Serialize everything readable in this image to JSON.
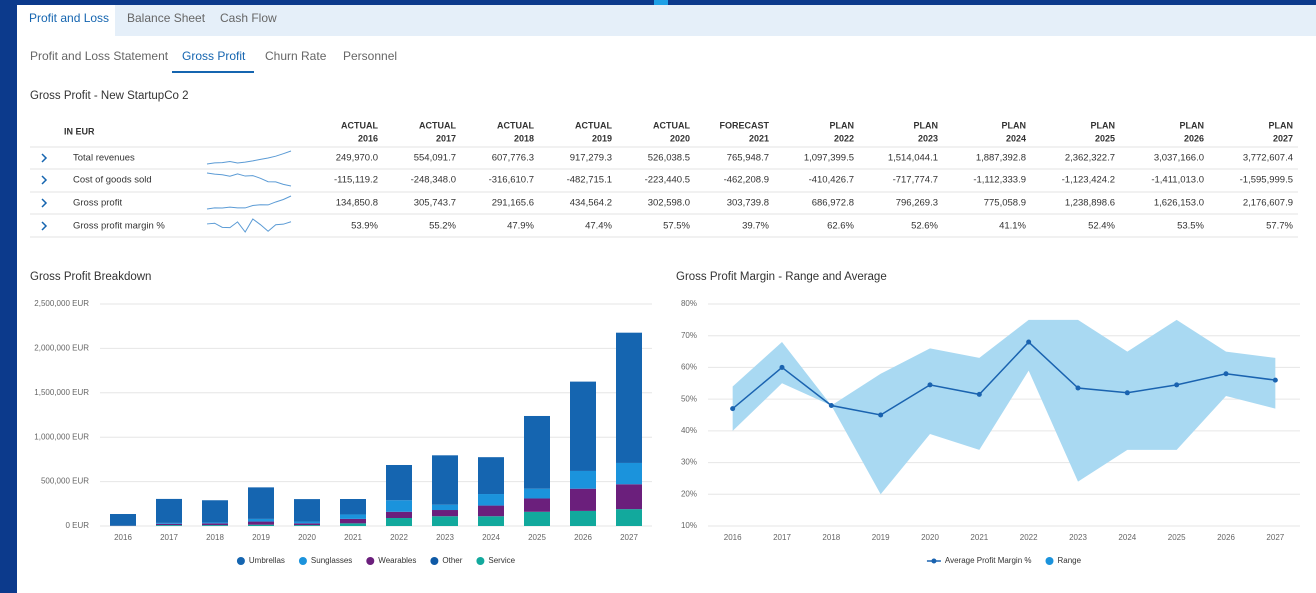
{
  "tabs": [
    "Profit and Loss",
    "Balance Sheet",
    "Cash Flow"
  ],
  "subtabs": [
    "Profit and Loss Statement",
    "Gross Profit",
    "Churn Rate",
    "Personnel"
  ],
  "table": {
    "title": "Gross Profit - New StartupCo 2",
    "unit": "IN EUR",
    "columns": [
      {
        "kind": "ACTUAL",
        "year": "2016"
      },
      {
        "kind": "ACTUAL",
        "year": "2017"
      },
      {
        "kind": "ACTUAL",
        "year": "2018"
      },
      {
        "kind": "ACTUAL",
        "year": "2019"
      },
      {
        "kind": "ACTUAL",
        "year": "2020"
      },
      {
        "kind": "FORECAST",
        "year": "2021"
      },
      {
        "kind": "PLAN",
        "year": "2022"
      },
      {
        "kind": "PLAN",
        "year": "2023"
      },
      {
        "kind": "PLAN",
        "year": "2024"
      },
      {
        "kind": "PLAN",
        "year": "2025"
      },
      {
        "kind": "PLAN",
        "year": "2026"
      },
      {
        "kind": "PLAN",
        "year": "2027"
      }
    ],
    "rows": [
      {
        "label": "Total revenues",
        "cells": [
          "249,970.0",
          "554,091.7",
          "607,776.3",
          "917,279.3",
          "526,038.5",
          "765,948.7",
          "1,097,399.5",
          "1,514,044.1",
          "1,887,392.8",
          "2,362,322.7",
          "3,037,166.0",
          "3,772,607.4"
        ]
      },
      {
        "label": "Cost of goods sold",
        "cells": [
          "-115,119.2",
          "-248,348.0",
          "-316,610.7",
          "-482,715.1",
          "-223,440.5",
          "-462,208.9",
          "-410,426.7",
          "-717,774.7",
          "-1,112,333.9",
          "-1,123,424.2",
          "-1,411,013.0",
          "-1,595,999.5"
        ]
      },
      {
        "label": "Gross profit",
        "cells": [
          "134,850.8",
          "305,743.7",
          "291,165.6",
          "434,564.2",
          "302,598.0",
          "303,739.8",
          "686,972.8",
          "796,269.3",
          "775,058.9",
          "1,238,898.6",
          "1,626,153.0",
          "2,176,607.9"
        ]
      },
      {
        "label": "Gross profit margin %",
        "cells": [
          "53.9%",
          "55.2%",
          "47.9%",
          "47.4%",
          "57.5%",
          "39.7%",
          "62.6%",
          "52.6%",
          "41.1%",
          "52.4%",
          "53.5%",
          "57.7%"
        ]
      }
    ]
  },
  "chart_data": [
    {
      "type": "bar",
      "stacked": true,
      "title": "Gross Profit Breakdown",
      "categories": [
        "2016",
        "2017",
        "2018",
        "2019",
        "2020",
        "2021",
        "2022",
        "2023",
        "2024",
        "2025",
        "2026",
        "2027"
      ],
      "series": [
        {
          "name": "Umbrellas",
          "color": "#1565b0",
          "values": [
            130000,
            270000,
            250000,
            355000,
            253000,
            174000,
            397000,
            556000,
            415000,
            819000,
            1006000,
            1467000
          ]
        },
        {
          "name": "Sunglasses",
          "color": "#1b93dc",
          "values": [
            1000,
            10000,
            10000,
            30000,
            20000,
            50000,
            130000,
            60000,
            130000,
            110000,
            200000,
            240000
          ]
        },
        {
          "name": "Wearables",
          "color": "#6b1f7c",
          "values": [
            2000,
            15000,
            20000,
            35000,
            20000,
            50000,
            70000,
            70000,
            120000,
            150000,
            250000,
            280000
          ]
        },
        {
          "name": "Other",
          "color": "#0f5aa6",
          "values": [
            0,
            0,
            0,
            0,
            0,
            0,
            0,
            0,
            0,
            0,
            0,
            0
          ]
        },
        {
          "name": "Service",
          "color": "#12a99d",
          "values": [
            2000,
            10000,
            10000,
            15000,
            10000,
            30000,
            90000,
            110000,
            110000,
            160000,
            170000,
            190000
          ]
        }
      ],
      "ylim": [
        0,
        2500000
      ],
      "yticks": [
        {
          "value": 0,
          "label": "0 EUR"
        },
        {
          "value": 500000,
          "label": "500,000 EUR"
        },
        {
          "value": 1000000,
          "label": "1,000,000 EUR"
        },
        {
          "value": 1500000,
          "label": "1,500,000 EUR"
        },
        {
          "value": 2000000,
          "label": "2,000,000 EUR"
        },
        {
          "value": 2500000,
          "label": "2,500,000 EUR"
        }
      ],
      "grid": true
    },
    {
      "type": "line",
      "title": "Gross Profit Margin - Range and Average",
      "categories": [
        "2016",
        "2017",
        "2018",
        "2019",
        "2020",
        "2021",
        "2022",
        "2023",
        "2024",
        "2025",
        "2026",
        "2027"
      ],
      "series": [
        {
          "name": "Average Profit Margin %",
          "color": "#1a63b0",
          "values": [
            47,
            60,
            48,
            45,
            54.5,
            51.5,
            68,
            53.5,
            52,
            54.5,
            58,
            56
          ]
        }
      ],
      "range": {
        "name": "Range",
        "color": "#a9d9f2",
        "low": [
          40,
          55,
          48,
          20,
          39,
          34,
          59,
          24,
          34,
          34,
          51,
          47
        ],
        "high": [
          54,
          68,
          48,
          58,
          66,
          63,
          75,
          75,
          65,
          75,
          65,
          63
        ]
      },
      "ylim": [
        10,
        80
      ],
      "yticks": [
        {
          "value": 10,
          "label": "10%"
        },
        {
          "value": 20,
          "label": "20%"
        },
        {
          "value": 30,
          "label": "30%"
        },
        {
          "value": 40,
          "label": "40%"
        },
        {
          "value": 50,
          "label": "50%"
        },
        {
          "value": 60,
          "label": "60%"
        },
        {
          "value": 70,
          "label": "70%"
        },
        {
          "value": 80,
          "label": "80%"
        }
      ],
      "grid": true
    }
  ]
}
